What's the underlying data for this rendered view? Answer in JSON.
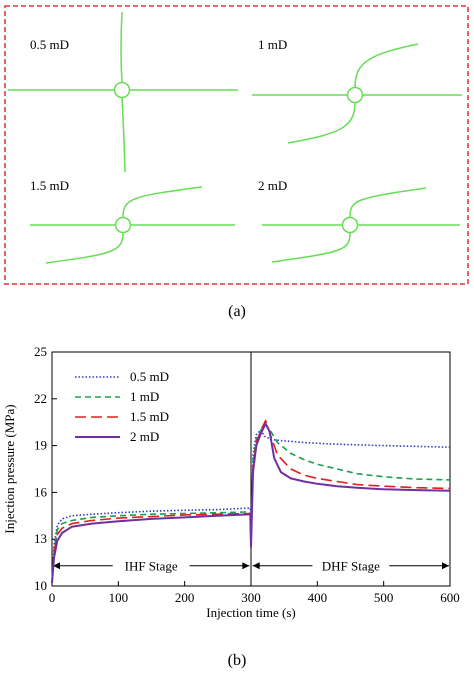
{
  "panel_a": {
    "caption": "(a)",
    "border_color": "#e03030",
    "fracture_color": "#66dd55",
    "cases": [
      {
        "label": "0.5 mD"
      },
      {
        "label": "1 mD"
      },
      {
        "label": "1.5 mD"
      },
      {
        "label": "2 mD"
      }
    ]
  },
  "panel_b": {
    "caption": "(b)",
    "stage_labels": {
      "ihf": "IHF Stage",
      "dhf": "DHF Stage"
    }
  },
  "chart_data": {
    "type": "line",
    "title": "",
    "xlabel": "Injection time (s)",
    "ylabel": "Injection pressure (MPa)",
    "xlim": [
      0,
      600
    ],
    "ylim": [
      10,
      25
    ],
    "xticks": [
      0,
      100,
      200,
      300,
      400,
      500,
      600
    ],
    "yticks": [
      10,
      13,
      16,
      19,
      22,
      25
    ],
    "grid": false,
    "legend_position": "top-left",
    "series": [
      {
        "name": "0.5 mD",
        "color": "#2a3fbf",
        "dash": "dotted",
        "x": [
          0,
          3,
          8,
          15,
          30,
          60,
          100,
          150,
          200,
          250,
          299,
          300,
          303,
          308,
          315,
          320,
          330,
          350,
          380,
          420,
          460,
          500,
          550,
          600
        ],
        "y": [
          10.2,
          12.6,
          13.9,
          14.3,
          14.5,
          14.6,
          14.7,
          14.8,
          14.85,
          14.9,
          15.0,
          12.5,
          18.4,
          19.7,
          20.0,
          19.6,
          19.4,
          19.3,
          19.2,
          19.1,
          19.05,
          19.0,
          18.95,
          18.9
        ]
      },
      {
        "name": "1 mD",
        "color": "#1e9e4a",
        "dash": "dashed",
        "x": [
          0,
          3,
          8,
          15,
          30,
          60,
          100,
          150,
          200,
          250,
          299,
          300,
          303,
          308,
          315,
          322,
          330,
          340,
          360,
          380,
          400,
          430,
          460,
          500,
          550,
          600
        ],
        "y": [
          10.2,
          12.3,
          13.6,
          14.0,
          14.2,
          14.4,
          14.5,
          14.6,
          14.65,
          14.7,
          14.75,
          12.5,
          18.0,
          19.4,
          20.0,
          20.4,
          19.9,
          19.2,
          18.5,
          18.1,
          17.8,
          17.5,
          17.2,
          17.0,
          16.85,
          16.8
        ]
      },
      {
        "name": "1.5 mD",
        "color": "#e0201c",
        "dash": "longdash",
        "x": [
          0,
          3,
          8,
          15,
          30,
          60,
          100,
          150,
          200,
          250,
          299,
          300,
          303,
          308,
          315,
          322,
          330,
          340,
          360,
          380,
          400,
          430,
          460,
          500,
          550,
          600
        ],
        "y": [
          10.2,
          12.1,
          13.3,
          13.7,
          14.0,
          14.2,
          14.35,
          14.45,
          14.55,
          14.6,
          14.65,
          12.5,
          17.6,
          19.2,
          20.0,
          20.6,
          19.6,
          18.4,
          17.5,
          17.1,
          16.9,
          16.7,
          16.5,
          16.4,
          16.3,
          16.25
        ]
      },
      {
        "name": "2 mD",
        "color": "#7030a0",
        "dash": "solid",
        "x": [
          0,
          3,
          8,
          15,
          30,
          60,
          100,
          150,
          200,
          250,
          299,
          300,
          303,
          308,
          315,
          322,
          328,
          335,
          345,
          360,
          380,
          400,
          430,
          460,
          500,
          550,
          600
        ],
        "y": [
          10.2,
          11.8,
          12.9,
          13.4,
          13.8,
          14.0,
          14.15,
          14.3,
          14.4,
          14.5,
          14.6,
          12.5,
          17.3,
          19.0,
          19.8,
          20.4,
          19.9,
          18.2,
          17.3,
          16.9,
          16.7,
          16.55,
          16.4,
          16.3,
          16.2,
          16.15,
          16.1
        ]
      }
    ]
  }
}
